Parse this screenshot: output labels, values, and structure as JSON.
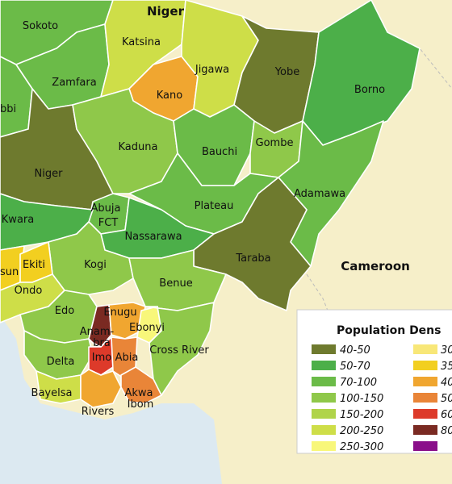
{
  "countries": {
    "niger": "Niger",
    "cameroon": "Cameroon"
  },
  "states": {
    "sokoto": "Sokoto",
    "katsina": "Katsina",
    "zamfara": "Zamfara",
    "kebbi": "bbi",
    "jigawa": "Jigawa",
    "yobe": "Yobe",
    "kano": "Kano",
    "borno": "Borno",
    "kaduna": "Kaduna",
    "bauchi": "Bauchi",
    "gombe": "Gombe",
    "niger": "Niger",
    "adamawa": "Adamawa",
    "abuja_line1": "Abuja",
    "abuja_line2": "FCT",
    "plateau": "Plateau",
    "kwara": "Kwara",
    "nassarawa": "Nassarawa",
    "taraba": "Taraba",
    "ekiti": "Ekiti",
    "osun": "sun",
    "kogi": "Kogi",
    "ondo": "Ondo",
    "benue": "Benue",
    "edo": "Edo",
    "enugu": "Enugu",
    "anambra_line1": "Anam-",
    "anambra_line2": "bra",
    "ebonyi": "Ebonyi",
    "imo": "Imo",
    "abia": "Abia",
    "cross_river": "Cross River",
    "delta": "Delta",
    "akwa_ibom_line1": "Akwa",
    "akwa_ibom_line2": "Ibom",
    "bayelsa": "Bayelsa",
    "rivers": "Rivers"
  },
  "legend": {
    "title": "Population Dens",
    "left": [
      {
        "label": "40-50",
        "color": "#6e7a2e"
      },
      {
        "label": "50-70",
        "color": "#4caf49"
      },
      {
        "label": "70-100",
        "color": "#6bbb48"
      },
      {
        "label": "100-150",
        "color": "#8fc84a"
      },
      {
        "label": "150-200",
        "color": "#b0d44a"
      },
      {
        "label": "200-250",
        "color": "#cede48"
      },
      {
        "label": "250-300",
        "color": "#f8f77a"
      }
    ],
    "right": [
      {
        "label": "30",
        "color": "#f8e778"
      },
      {
        "label": "35",
        "color": "#f2cf20"
      },
      {
        "label": "40",
        "color": "#f0a630"
      },
      {
        "label": "50",
        "color": "#e98538"
      },
      {
        "label": "60",
        "color": "#dd3a2a"
      },
      {
        "label": "80",
        "color": "#7a2a22"
      },
      {
        "label": "",
        "color": "#8a0f8a"
      }
    ]
  },
  "colors": {
    "land_outside": "#f6efc9",
    "sea": "#dce9f1",
    "border": "#ffffff"
  }
}
